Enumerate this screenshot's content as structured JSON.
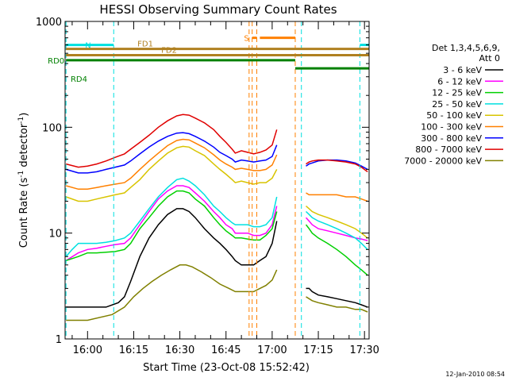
{
  "chart_data": {
    "type": "line",
    "title": "HESSI Observing Summary Count Rates",
    "xlabel": "Start Time (23-Oct-08 15:52:42)",
    "ylabel_parts": [
      "Count Rate (s",
      "-1",
      " detector",
      "-1",
      ")"
    ],
    "y_scale": "log",
    "ylim": [
      1,
      1000
    ],
    "y_ticks": [
      {
        "value": 1,
        "label": "1"
      },
      {
        "value": 10,
        "label": "10"
      },
      {
        "value": 100,
        "label": "100"
      },
      {
        "value": 1000,
        "label": "1000"
      }
    ],
    "xlim_minutes": [
      -7.3,
      91.5
    ],
    "x_ticks": [
      {
        "value": 0,
        "label": "16:00"
      },
      {
        "value": 15,
        "label": "16:15"
      },
      {
        "value": 30,
        "label": "16:30"
      },
      {
        "value": 45,
        "label": "16:45"
      },
      {
        "value": 60,
        "label": "17:00"
      },
      {
        "value": 75,
        "label": "17:15"
      },
      {
        "value": 90,
        "label": "17:30"
      }
    ],
    "legend": {
      "header": [
        "Det 1,3,4,5,6,9,",
        "Att 0"
      ],
      "placement": "right"
    },
    "series": [
      {
        "name": "3 - 6 keV",
        "color": "#000000",
        "x": [
          -7,
          0,
          6,
          10,
          12,
          14,
          17,
          20,
          23,
          26,
          29,
          31,
          33,
          35,
          38,
          41,
          43,
          45,
          47,
          48,
          50,
          52,
          54,
          56,
          58,
          60,
          61.5
        ],
        "y": [
          2,
          2,
          2,
          2.2,
          2.5,
          3.5,
          6,
          9,
          12,
          15,
          17,
          17,
          16,
          14,
          11,
          9,
          8,
          7,
          6,
          5.5,
          5,
          5,
          5,
          5.5,
          6,
          8,
          13
        ]
      },
      {
        "name": "6 - 12 keV",
        "color": "#ff00ff",
        "x": [
          -7,
          -3,
          0,
          3,
          6,
          9,
          12,
          14,
          17,
          20,
          23,
          26,
          29,
          31,
          33,
          35,
          38,
          41,
          43,
          45,
          47,
          48,
          50,
          52,
          54,
          56,
          58,
          60,
          61.5
        ],
        "y": [
          5.5,
          6.5,
          7,
          7.2,
          7.5,
          7.8,
          8,
          9,
          12,
          16,
          21,
          25,
          28,
          28,
          27,
          24,
          20,
          16,
          14,
          12,
          11,
          10,
          10,
          10,
          9.5,
          9.5,
          10,
          12,
          18
        ]
      },
      {
        "name": "12 - 25 keV",
        "color": "#00d000",
        "x": [
          -7,
          -3,
          0,
          3,
          6,
          9,
          12,
          14,
          17,
          20,
          23,
          26,
          29,
          31,
          33,
          35,
          38,
          41,
          43,
          45,
          47,
          48,
          50,
          52,
          54,
          56,
          58,
          60,
          61.5
        ],
        "y": [
          5.5,
          6,
          6.5,
          6.5,
          6.6,
          6.7,
          7,
          8,
          11,
          14,
          18,
          22,
          25,
          25,
          24,
          21,
          18,
          14,
          12,
          10.5,
          9.5,
          9,
          9,
          8.8,
          8.6,
          8.6,
          9.5,
          11,
          16
        ]
      },
      {
        "name": "25 - 50 keV",
        "color": "#00e0e0",
        "x": [
          -7,
          -5,
          -3,
          0,
          3,
          6,
          9,
          12,
          14,
          17,
          20,
          23,
          26,
          29,
          31,
          33,
          35,
          38,
          41,
          43,
          45,
          47,
          48,
          50,
          52,
          54,
          56,
          58,
          60,
          61.5
        ],
        "y": [
          6,
          7,
          8,
          8,
          8,
          8.2,
          8.5,
          9,
          10,
          13,
          17,
          22,
          27,
          32,
          33,
          31,
          28,
          23,
          18,
          16,
          14,
          12.5,
          12,
          12,
          12,
          11.5,
          11.5,
          12,
          14,
          22
        ]
      },
      {
        "name": "50 - 100 keV",
        "color": "#d8c400",
        "x": [
          -7,
          -3,
          0,
          3,
          6,
          9,
          12,
          14,
          17,
          20,
          23,
          26,
          29,
          31,
          33,
          35,
          38,
          41,
          43,
          45,
          47,
          48,
          50,
          52,
          54,
          56,
          58,
          60,
          61.5
        ],
        "y": [
          22,
          20,
          20,
          21,
          22,
          23,
          24,
          27,
          32,
          40,
          48,
          57,
          64,
          66,
          65,
          60,
          54,
          45,
          40,
          36,
          32,
          30,
          31,
          30,
          29,
          30,
          30,
          33,
          40
        ]
      },
      {
        "name": "100 - 300 keV",
        "color": "#ff8000",
        "x": [
          -7,
          -3,
          0,
          3,
          6,
          9,
          12,
          14,
          17,
          20,
          23,
          26,
          29,
          31,
          33,
          35,
          38,
          41,
          43,
          45,
          47,
          48,
          50,
          52,
          54,
          56,
          58,
          60,
          61.5
        ],
        "y": [
          28,
          26,
          26,
          27,
          28,
          29,
          30,
          33,
          40,
          48,
          57,
          67,
          75,
          77,
          76,
          71,
          64,
          55,
          49,
          45,
          42,
          40,
          41,
          40,
          39,
          39,
          40,
          44,
          55
        ]
      },
      {
        "name": "300 - 800 keV",
        "color": "#0000ff",
        "x": [
          -7,
          -3,
          0,
          3,
          6,
          9,
          12,
          14,
          17,
          20,
          23,
          26,
          29,
          31,
          33,
          35,
          38,
          41,
          43,
          45,
          47,
          48,
          50,
          52,
          54,
          56,
          58,
          60,
          61.5
        ],
        "y": [
          40,
          37,
          37,
          38,
          40,
          42,
          44,
          48,
          56,
          65,
          74,
          82,
          88,
          89,
          87,
          82,
          74,
          65,
          58,
          54,
          50,
          47,
          49,
          48,
          47,
          48,
          49,
          53,
          68
        ]
      },
      {
        "name": "800 - 7000 keV",
        "color": "#e00000",
        "x": [
          -7,
          -3,
          0,
          3,
          6,
          9,
          12,
          14,
          17,
          20,
          23,
          26,
          29,
          31,
          33,
          35,
          38,
          41,
          43,
          45,
          47,
          48,
          50,
          52,
          54,
          56,
          58,
          60,
          61.5
        ],
        "y": [
          45,
          42,
          43,
          45,
          48,
          52,
          56,
          62,
          72,
          84,
          100,
          115,
          128,
          132,
          130,
          122,
          110,
          95,
          82,
          72,
          62,
          57,
          60,
          58,
          56,
          58,
          61,
          68,
          95
        ]
      },
      {
        "name": "7000 - 20000 keV",
        "color": "#808000",
        "x": [
          -7,
          0,
          8,
          12,
          15,
          18,
          21,
          24,
          27,
          30,
          32,
          34,
          37,
          40,
          43,
          46,
          48,
          50,
          52,
          54,
          56,
          58,
          60,
          61.5
        ],
        "y": [
          1.5,
          1.5,
          1.7,
          2,
          2.5,
          3,
          3.5,
          4,
          4.5,
          5,
          5,
          4.8,
          4.3,
          3.8,
          3.3,
          3,
          2.8,
          2.8,
          2.8,
          2.8,
          3,
          3.2,
          3.6,
          4.5
        ]
      }
    ],
    "post_gap": {
      "x": [
        71,
        72,
        73,
        75,
        78,
        81,
        84,
        87,
        89,
        91
      ],
      "series": {
        "3 - 6 keV": [
          3,
          3,
          2.8,
          2.6,
          2.5,
          2.4,
          2.3,
          2.2,
          2.1,
          2
        ],
        "6 - 12 keV": [
          14,
          13,
          12,
          11,
          10.5,
          10,
          9.5,
          9,
          8.8,
          8.5
        ],
        "12 - 25 keV": [
          12,
          11,
          10,
          9,
          8,
          7,
          6,
          5,
          4.5,
          4
        ],
        "25 - 50 keV": [
          16,
          15,
          14,
          13,
          12,
          11,
          10,
          9,
          8,
          7
        ],
        "50 - 100 keV": [
          18,
          17,
          16,
          15,
          14,
          13,
          12,
          11,
          10,
          9
        ],
        "100 - 300 keV": [
          24,
          23,
          23,
          23,
          23,
          23,
          22,
          22,
          21,
          20
        ],
        "300 - 800 keV": [
          43,
          45,
          46,
          48,
          49,
          49,
          48,
          46,
          43,
          40
        ],
        "800 - 7000 keV": [
          45,
          47,
          48,
          49,
          49,
          48,
          47,
          45,
          42,
          38
        ],
        "7000 - 20000 keV": [
          2.5,
          2.4,
          2.3,
          2.2,
          2.1,
          2,
          2,
          1.9,
          1.9,
          1.8
        ]
      }
    },
    "vertical_markers": [
      {
        "x": -7,
        "color": "#00e0e0"
      },
      {
        "x": 8.5,
        "color": "#00e0e0"
      },
      {
        "x": 52.5,
        "color": "#ff8000"
      },
      {
        "x": 53.5,
        "color": "#ff8000"
      },
      {
        "x": 55,
        "color": "#ff8000"
      },
      {
        "x": 67.5,
        "color": "#ff8000"
      },
      {
        "x": 69.5,
        "color": "#00e0e0"
      },
      {
        "x": 88.5,
        "color": "#00e0e0"
      }
    ],
    "flag_bars": [
      {
        "label": "N",
        "color": "#00e0e0",
        "y": 600,
        "segments": [
          [
            -7,
            8.5
          ],
          [
            88.5,
            91.5
          ]
        ]
      },
      {
        "label": "S",
        "color": "#ff8000",
        "y": 700,
        "segments": [
          [
            53.5,
            55
          ],
          [
            56,
            67.5
          ]
        ]
      },
      {
        "label": "FD1",
        "color": "#b08020",
        "y": 550,
        "segments": [
          [
            -7,
            91.5
          ]
        ]
      },
      {
        "label": "FD2",
        "color": "#b08020",
        "y": 480,
        "segments": [
          [
            -7,
            91.5
          ]
        ]
      },
      {
        "label": "RD0",
        "color": "#008000",
        "y": 430,
        "segments": [
          [
            -7,
            67.5
          ]
        ]
      },
      {
        "label": "RD4",
        "color": "#008000",
        "y": 360,
        "segments": [
          [
            67.5,
            91.5
          ]
        ]
      }
    ],
    "timestamp": "12-Jan-2010 08:54"
  }
}
